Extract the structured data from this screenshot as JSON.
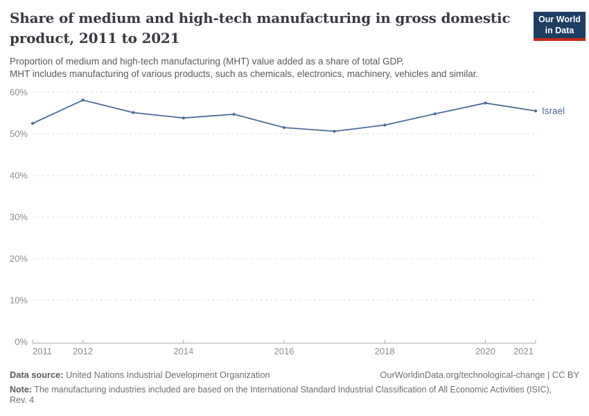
{
  "header": {
    "title": "Share of medium and high-tech manufacturing in gross domestic\nproduct, 2011 to 2021",
    "subtitle": "Proportion of medium and high-tech manufacturing (MHT) value added as a share of total GDP.\nMHT includes manufacturing of various products, such as chemicals, electronics, machinery, vehicles and similar.",
    "logo": "Our World\nin Data"
  },
  "chart_data": {
    "type": "line",
    "title": "Share of medium and high-tech manufacturing in gross domestic product, 2011 to 2021",
    "x": [
      2011,
      2012,
      2013,
      2014,
      2015,
      2016,
      2017,
      2018,
      2019,
      2020,
      2021
    ],
    "series": [
      {
        "name": "Israel",
        "color": "#4c6a9c",
        "values": [
          52.5,
          58.1,
          55.1,
          53.8,
          54.7,
          51.5,
          50.6,
          52.1,
          54.8,
          57.4,
          55.5
        ]
      }
    ],
    "entity_label": "Israel",
    "ylim": [
      0,
      60
    ],
    "yticks": [
      0,
      10,
      20,
      30,
      40,
      50,
      60
    ],
    "ytick_suffix": "%",
    "xticks": [
      2011,
      2012,
      2014,
      2016,
      2018,
      2020,
      2021
    ],
    "grid": "horizontal dashed",
    "legend_position": "line-end label"
  },
  "footer": {
    "data_source_label": "Data source:",
    "data_source_value": "United Nations Industrial Development Organization",
    "url": "OurWorldinData.org/technological-change",
    "separator": " | ",
    "license": "CC BY",
    "note_label": "Note:",
    "note_value": "The manufacturing industries included are based on the International Standard Industrial Classification of All Economic Activities (ISIC),\nRev. 4"
  },
  "colors": {
    "line": "#4c6a9c",
    "logo_navy": "#1d3d63",
    "logo_red": "#c5291f",
    "grid": "#dcdcdc",
    "axis": "#a8a8a8",
    "tick_label": "#8c8c8c",
    "title_text": "#3a3a42",
    "subtitle_text": "#595959",
    "footer_text": "#6e6e6e"
  }
}
